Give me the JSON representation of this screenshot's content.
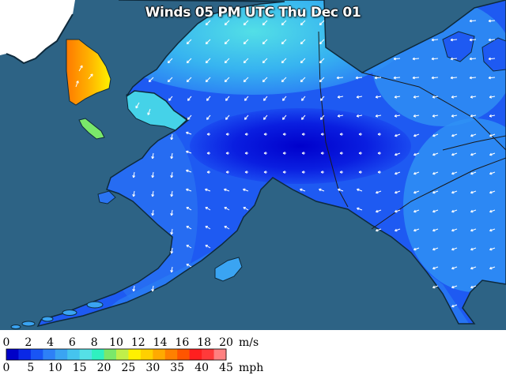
{
  "title": "Winds 05 PM UTC Thu Dec 01",
  "colors": {
    "ocean": "#2d6385",
    "land_foreign": "#ffffff",
    "shadow": "#0e2a3c",
    "border": "#1a1a1a",
    "arrow": "#ffffff",
    "wind_scale": [
      "#0000c8",
      "#0a28e6",
      "#1955f5",
      "#2d80f7",
      "#3aa4f2",
      "#45c4ee",
      "#55e0e6",
      "#2ff0c0",
      "#7ae86a",
      "#c0ef4a",
      "#fff000",
      "#ffd000",
      "#ffaa00",
      "#ff8000",
      "#ff5500",
      "#ff1f1f",
      "#ff3a3a",
      "#ff8080"
    ]
  },
  "legend": {
    "ms_ticks": [
      "0",
      "2",
      "4",
      "6",
      "8",
      "10",
      "12",
      "14",
      "16",
      "18",
      "20"
    ],
    "ms_unit": "m/s",
    "mph_ticks": [
      "0",
      "5",
      "10",
      "15",
      "20",
      "25",
      "30",
      "35",
      "40",
      "45"
    ],
    "mph_unit": "mph"
  }
}
